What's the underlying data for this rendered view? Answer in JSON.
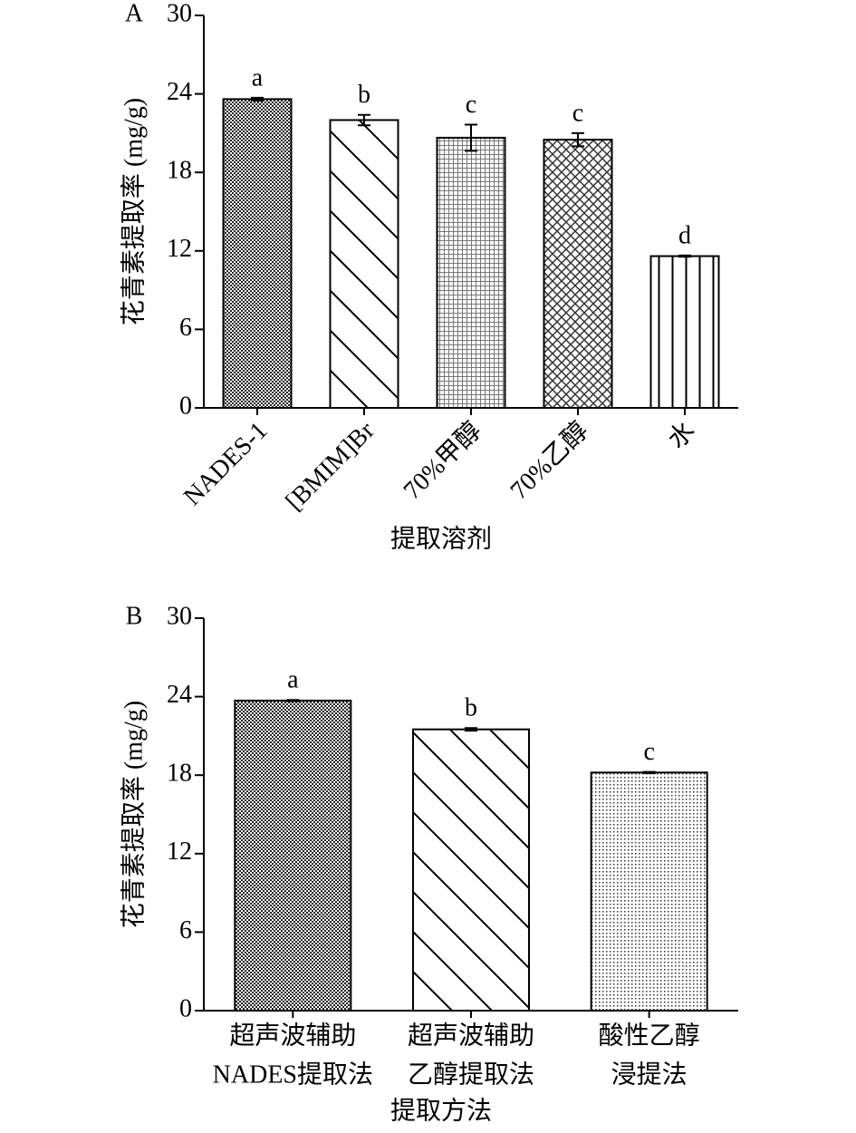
{
  "chart_data": [
    {
      "type": "bar",
      "panel": "A",
      "ylabel": "花青素提取率 (mg/g)",
      "xlabel": "提取溶剂",
      "categories": [
        "NADES-1",
        "[BMIM]Br",
        "70%甲醇",
        "70%乙醇",
        "水"
      ],
      "values": [
        23.6,
        22.0,
        20.65,
        20.5,
        11.6
      ],
      "errors": [
        0.1,
        0.4,
        1.0,
        0.5,
        0.05
      ],
      "letters": [
        "a",
        "b",
        "c",
        "c",
        "d"
      ],
      "color": "#000000",
      "ylim": [
        0,
        30
      ],
      "yticks": [
        0,
        6,
        12,
        18,
        24,
        30
      ],
      "label_rotation": -45
    },
    {
      "type": "bar",
      "panel": "B",
      "ylabel": "花青素提取率 (mg/g)",
      "xlabel": "提取方法",
      "categories": [
        [
          "超声波辅助",
          "NADES提取法"
        ],
        [
          "超声波辅助",
          "乙醇提取法"
        ],
        [
          "酸性乙醇",
          "浸提法"
        ]
      ],
      "values": [
        23.7,
        21.5,
        18.2
      ],
      "errors": [
        0.05,
        0.1,
        0.05
      ],
      "letters": [
        "a",
        "b",
        "c"
      ],
      "color": "#000000",
      "ylim": [
        0,
        30
      ],
      "yticks": [
        0,
        6,
        12,
        18,
        24,
        30
      ],
      "label_rotation": 0
    }
  ]
}
